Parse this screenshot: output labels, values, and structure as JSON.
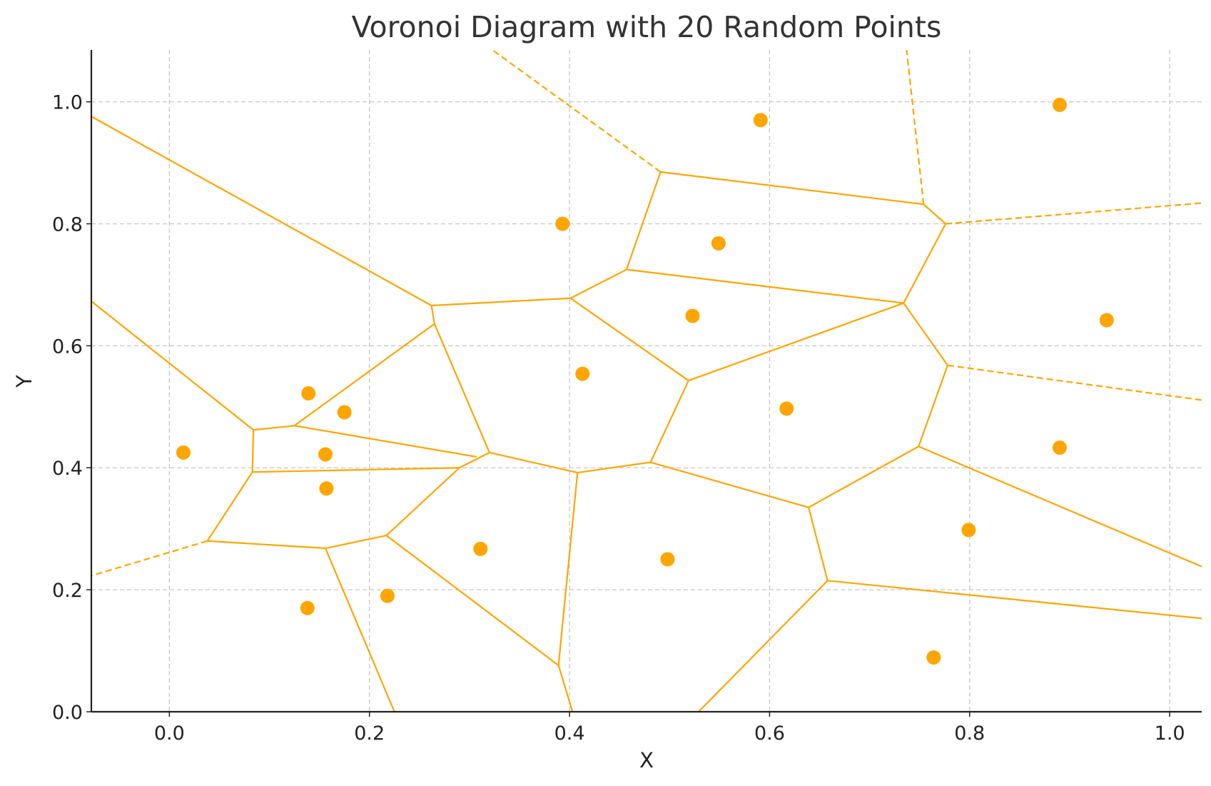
{
  "chart_data": {
    "type": "scatter",
    "title": "Voronoi Diagram with 20 Random Points",
    "xlabel": "X",
    "ylabel": "Y",
    "xlim": [
      -0.078,
      1.032
    ],
    "ylim": [
      0.0,
      1.085
    ],
    "grid": true,
    "x_ticks": [
      "0.0",
      "0.2",
      "0.4",
      "0.6",
      "0.8",
      "1.0"
    ],
    "y_ticks": [
      "0.0",
      "0.2",
      "0.4",
      "0.6",
      "0.8",
      "1.0"
    ],
    "colors": {
      "points": "#FFA500",
      "edges": "#FFA500",
      "grid": "#C6C6C6",
      "axis": "#222222"
    },
    "points": [
      [
        0.014,
        0.425
      ],
      [
        0.139,
        0.522
      ],
      [
        0.175,
        0.491
      ],
      [
        0.156,
        0.422
      ],
      [
        0.157,
        0.366
      ],
      [
        0.138,
        0.17
      ],
      [
        0.218,
        0.19
      ],
      [
        0.311,
        0.267
      ],
      [
        0.393,
        0.8
      ],
      [
        0.413,
        0.554
      ],
      [
        0.498,
        0.25
      ],
      [
        0.523,
        0.649
      ],
      [
        0.549,
        0.768
      ],
      [
        0.591,
        0.97
      ],
      [
        0.617,
        0.497
      ],
      [
        0.764,
        0.089
      ],
      [
        0.799,
        0.298
      ],
      [
        0.89,
        0.995
      ],
      [
        0.89,
        0.433
      ],
      [
        0.937,
        0.642
      ]
    ],
    "finite_edges": [
      [
        [
          0.262,
          0.666
        ],
        [
          0.265,
          0.636
        ]
      ],
      [
        [
          0.262,
          0.666
        ],
        [
          0.401,
          0.678
        ]
      ],
      [
        [
          0.401,
          0.678
        ],
        [
          0.457,
          0.725
        ]
      ],
      [
        [
          0.457,
          0.725
        ],
        [
          0.491,
          0.885
        ]
      ],
      [
        [
          0.491,
          0.885
        ],
        [
          0.754,
          0.832
        ]
      ],
      [
        [
          0.754,
          0.832
        ],
        [
          0.776,
          0.8
        ]
      ],
      [
        [
          0.776,
          0.8
        ],
        [
          0.734,
          0.67
        ]
      ],
      [
        [
          0.457,
          0.725
        ],
        [
          0.734,
          0.67
        ]
      ],
      [
        [
          0.401,
          0.678
        ],
        [
          0.519,
          0.543
        ]
      ],
      [
        [
          0.519,
          0.543
        ],
        [
          0.734,
          0.67
        ]
      ],
      [
        [
          0.734,
          0.67
        ],
        [
          0.778,
          0.568
        ]
      ],
      [
        [
          0.778,
          0.568
        ],
        [
          0.749,
          0.435
        ]
      ],
      [
        [
          0.519,
          0.543
        ],
        [
          0.481,
          0.409
        ]
      ],
      [
        [
          0.481,
          0.409
        ],
        [
          0.408,
          0.392
        ]
      ],
      [
        [
          0.408,
          0.392
        ],
        [
          0.32,
          0.425
        ]
      ],
      [
        [
          0.32,
          0.425
        ],
        [
          0.265,
          0.636
        ]
      ],
      [
        [
          0.265,
          0.636
        ],
        [
          0.125,
          0.469
        ]
      ],
      [
        [
          0.125,
          0.469
        ],
        [
          0.084,
          0.462
        ]
      ],
      [
        [
          0.084,
          0.462
        ],
        [
          0.083,
          0.393
        ]
      ],
      [
        [
          0.083,
          0.393
        ],
        [
          0.038,
          0.28
        ]
      ],
      [
        [
          0.038,
          0.28
        ],
        [
          0.156,
          0.268
        ]
      ],
      [
        [
          0.156,
          0.268
        ],
        [
          0.217,
          0.289
        ]
      ],
      [
        [
          0.217,
          0.289
        ],
        [
          0.29,
          0.4
        ]
      ],
      [
        [
          0.29,
          0.4
        ],
        [
          0.32,
          0.425
        ]
      ],
      [
        [
          0.083,
          0.393
        ],
        [
          0.29,
          0.4
        ]
      ],
      [
        [
          0.125,
          0.469
        ],
        [
          0.307,
          0.418
        ]
      ],
      [
        [
          0.217,
          0.289
        ],
        [
          0.389,
          0.076
        ]
      ],
      [
        [
          0.389,
          0.076
        ],
        [
          0.408,
          0.392
        ]
      ],
      [
        [
          0.481,
          0.409
        ],
        [
          0.639,
          0.335
        ]
      ],
      [
        [
          0.639,
          0.335
        ],
        [
          0.749,
          0.435
        ]
      ],
      [
        [
          0.639,
          0.335
        ],
        [
          0.658,
          0.215
        ]
      ]
    ],
    "open_edges": [
      [
        [
          0.491,
          0.885
        ],
        [
          0.323,
          1.085
        ]
      ],
      [
        [
          0.754,
          0.832
        ],
        [
          0.737,
          1.085
        ]
      ],
      [
        [
          0.776,
          0.8
        ],
        [
          1.032,
          0.834
        ]
      ],
      [
        [
          0.778,
          0.568
        ],
        [
          1.032,
          0.511
        ]
      ],
      [
        [
          0.038,
          0.28
        ],
        [
          -0.078,
          0.223
        ]
      ]
    ],
    "boundary_edges": [
      [
        [
          0.262,
          0.666
        ],
        [
          -0.078,
          0.976
        ]
      ],
      [
        [
          0.084,
          0.462
        ],
        [
          -0.078,
          0.673
        ]
      ],
      [
        [
          0.156,
          0.268
        ],
        [
          0.225,
          0.0
        ]
      ],
      [
        [
          0.389,
          0.076
        ],
        [
          0.403,
          0.0
        ]
      ],
      [
        [
          0.658,
          0.215
        ],
        [
          0.529,
          0.0
        ]
      ],
      [
        [
          0.658,
          0.215
        ],
        [
          1.032,
          0.153
        ]
      ],
      [
        [
          0.749,
          0.435
        ],
        [
          1.032,
          0.238
        ]
      ]
    ]
  }
}
